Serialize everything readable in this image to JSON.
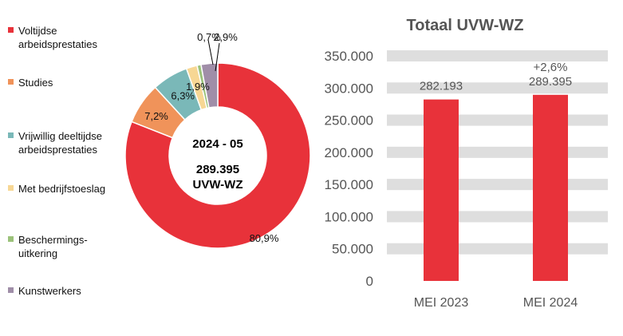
{
  "chart_data": [
    {
      "type": "pie",
      "variant": "donut",
      "center_text_line1": "2024 - 05",
      "center_text_line2": "289.395",
      "center_text_line3": "UVW-WZ",
      "slices": [
        {
          "name": "Voltijdse\narbeidsprestaties",
          "value": 80.9,
          "label": "80,9%",
          "color": "#e8323a"
        },
        {
          "name": "Studies",
          "value": 7.2,
          "label": "7,2%",
          "color": "#f0935a"
        },
        {
          "name": "Vrijwillig deeltijdse\narbeidsprestaties",
          "value": 6.3,
          "label": "6,3%",
          "color": "#7ab8b8"
        },
        {
          "name": "Met bedrijfstoeslag",
          "value": 1.9,
          "label": "1,9%",
          "color": "#f7d794"
        },
        {
          "name": "Beschermings-\nuitkering",
          "value": 0.7,
          "label": "0,7%",
          "color": "#9bc27a"
        },
        {
          "name": "Kunstwerkers",
          "value": 2.9,
          "label": "2,9%",
          "color": "#a08ea8"
        }
      ],
      "legend_position": "left"
    },
    {
      "type": "bar",
      "title": "Totaal UVW-WZ",
      "categories": [
        "MEI 2023",
        "MEI 2024"
      ],
      "values": [
        282193,
        289395
      ],
      "value_labels": [
        "282.193",
        "289.395"
      ],
      "change_label": "+2,6%",
      "bar_color": "#e8323a",
      "ylim": [
        0,
        350000
      ],
      "yticks": [
        0,
        50000,
        100000,
        150000,
        200000,
        250000,
        300000,
        350000
      ],
      "ytick_labels": [
        "0",
        "50.000",
        "100.000",
        "150.000",
        "200.000",
        "250.000",
        "300.000",
        "350.000"
      ],
      "grid": "horizontal bands"
    }
  ]
}
